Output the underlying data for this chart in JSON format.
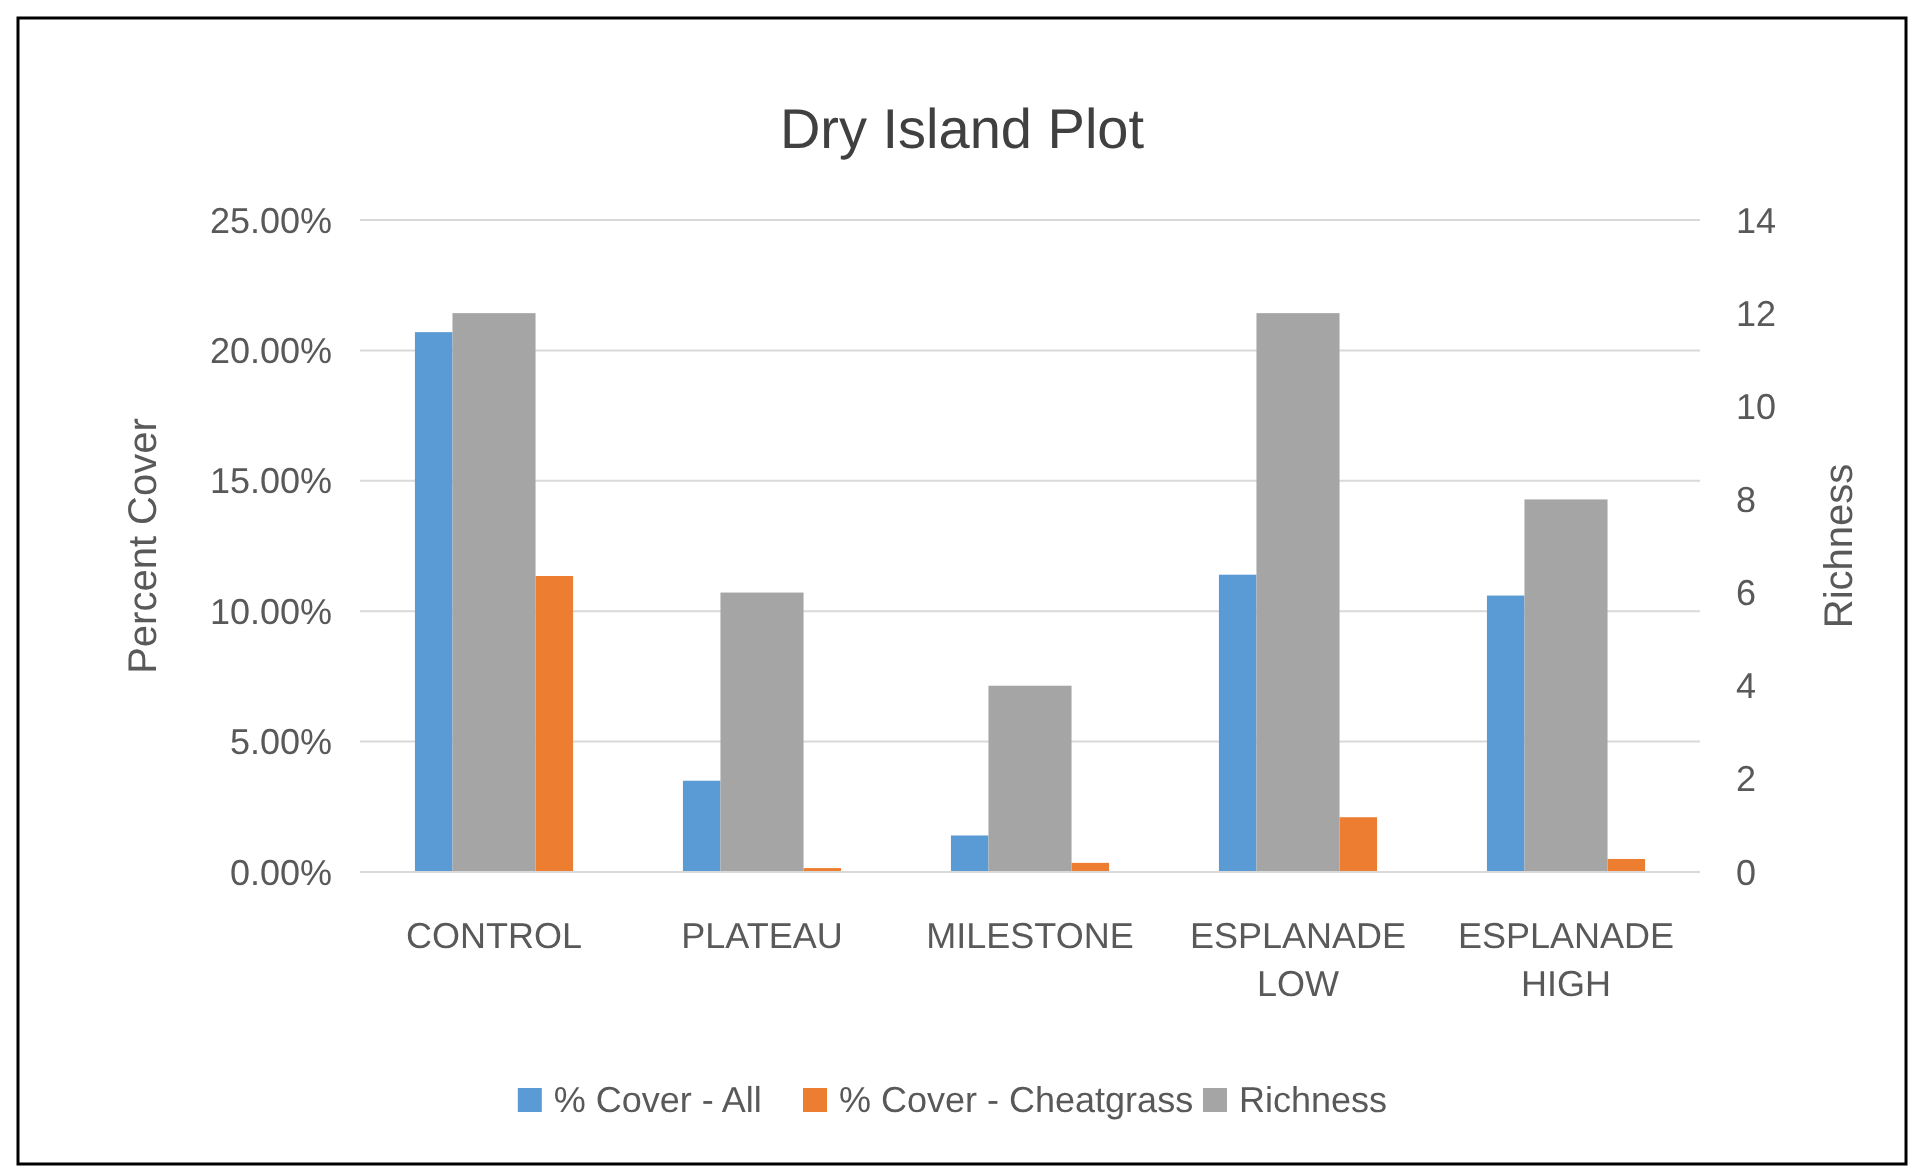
{
  "chart_data": {
    "type": "bar",
    "title": "Dry Island Plot",
    "ylabel": "Percent Cover",
    "y2label": "Richness",
    "categories": [
      "CONTROL",
      "PLATEAU",
      "MILESTONE",
      "ESPLANADE LOW",
      "ESPLANADE HIGH"
    ],
    "series": [
      {
        "name": "% Cover - All",
        "color": "#5b9bd5",
        "values": [
          20.7,
          3.5,
          1.4,
          11.4,
          10.6
        ]
      },
      {
        "name": "% Cover - Cheatgrass",
        "color": "#ed7d31",
        "values": [
          11.35,
          0.15,
          0.35,
          2.1,
          0.5
        ]
      },
      {
        "name": "Richness",
        "color": "#a5a5a5",
        "axis": "y2",
        "values": [
          12,
          6,
          4,
          12,
          8
        ]
      }
    ],
    "ylim": [
      0,
      25
    ],
    "yticks": [
      {
        "value": 0,
        "label": "0.00%"
      },
      {
        "value": 5,
        "label": "5.00%"
      },
      {
        "value": 10,
        "label": "10.00%"
      },
      {
        "value": 15,
        "label": "15.00%"
      },
      {
        "value": 20,
        "label": "20.00%"
      },
      {
        "value": 25,
        "label": "25.00%"
      }
    ],
    "y2lim": [
      0,
      14
    ],
    "y2ticks": [
      0,
      2,
      4,
      6,
      8,
      10,
      12,
      14
    ],
    "grid": "y",
    "legend": "bottom"
  }
}
